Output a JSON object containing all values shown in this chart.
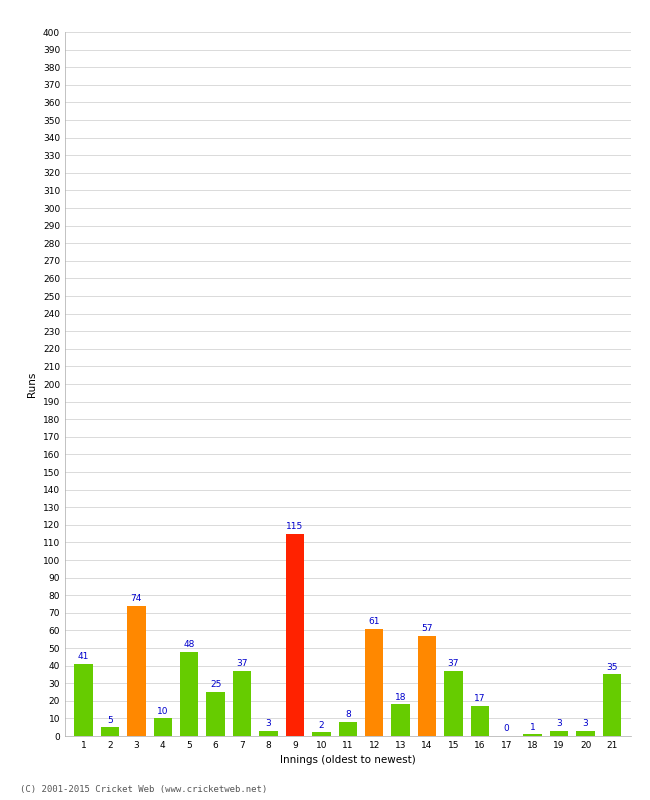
{
  "innings": [
    1,
    2,
    3,
    4,
    5,
    6,
    7,
    8,
    9,
    10,
    11,
    12,
    13,
    14,
    15,
    16,
    17,
    18,
    19,
    20,
    21
  ],
  "values": [
    41,
    5,
    74,
    10,
    48,
    25,
    37,
    3,
    115,
    2,
    8,
    61,
    18,
    57,
    37,
    17,
    0,
    1,
    3,
    3,
    35
  ],
  "colors": [
    "#66cc00",
    "#66cc00",
    "#ff8800",
    "#66cc00",
    "#66cc00",
    "#66cc00",
    "#66cc00",
    "#66cc00",
    "#ff2200",
    "#66cc00",
    "#66cc00",
    "#ff8800",
    "#66cc00",
    "#ff8800",
    "#66cc00",
    "#66cc00",
    "#66cc00",
    "#66cc00",
    "#66cc00",
    "#66cc00",
    "#66cc00"
  ],
  "xlabel": "Innings (oldest to newest)",
  "ylabel": "Runs",
  "ylim": [
    0,
    400
  ],
  "label_color": "#0000cc",
  "label_fontsize": 6.5,
  "axis_label_fontsize": 7.5,
  "tick_fontsize": 6.5,
  "grid_color": "#cccccc",
  "background_color": "#ffffff",
  "footer": "(C) 2001-2015 Cricket Web (www.cricketweb.net)"
}
